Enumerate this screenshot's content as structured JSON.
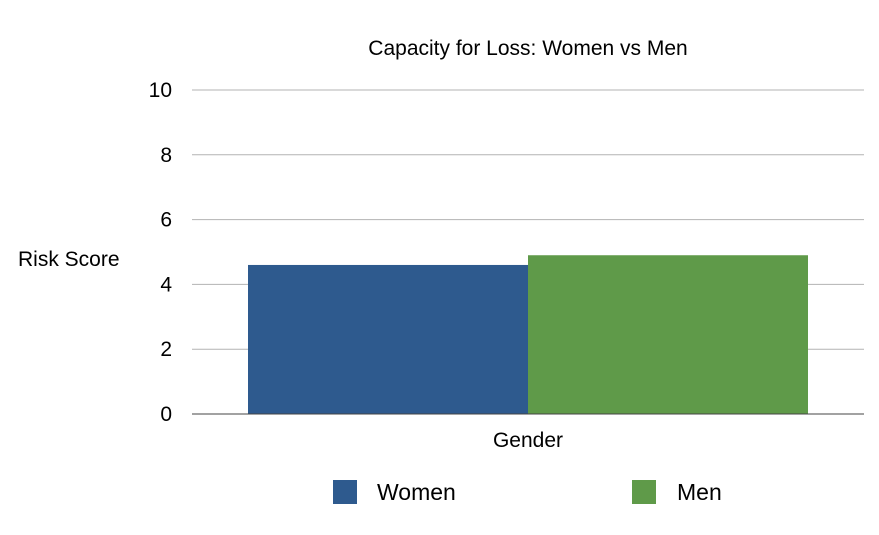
{
  "chart_data": {
    "type": "bar",
    "title": "Capacity for Loss: Women vs Men",
    "xlabel": "Gender",
    "ylabel": "Risk Score",
    "categories": [
      "Gender"
    ],
    "series": [
      {
        "name": "Women",
        "values": [
          4.6
        ],
        "color": "#2e5a8e"
      },
      {
        "name": "Men",
        "values": [
          4.9
        ],
        "color": "#5f9a49"
      }
    ],
    "ylim": [
      0,
      10
    ],
    "yticks": [
      "0",
      "2",
      "4",
      "6",
      "8",
      "10"
    ],
    "grid": true,
    "legend_position": "bottom"
  }
}
